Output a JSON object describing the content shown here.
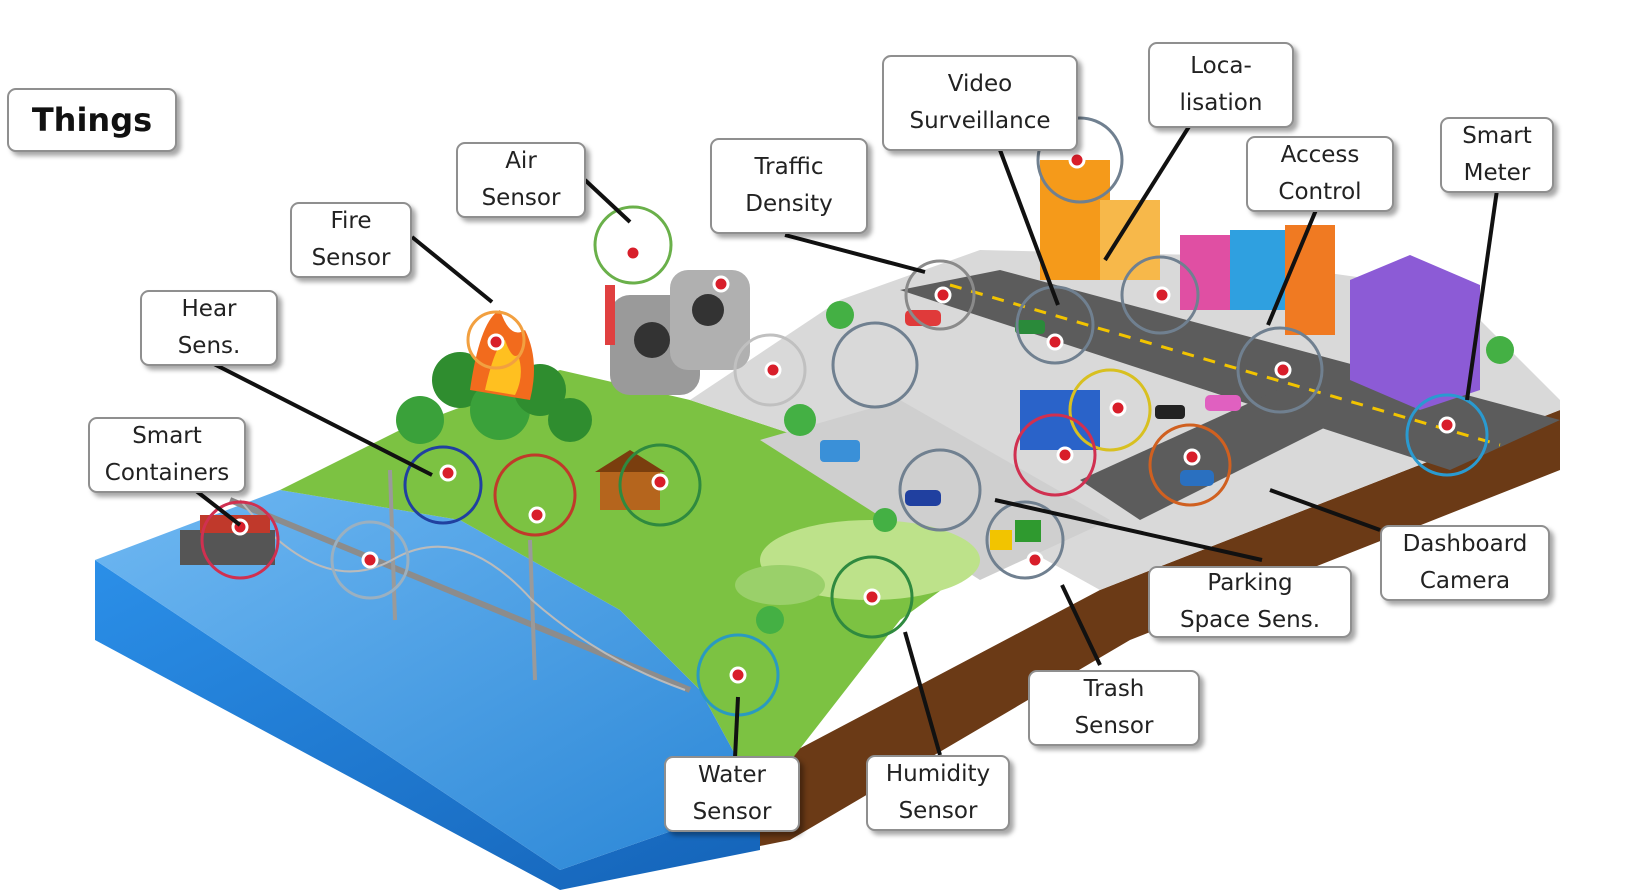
{
  "title": "Things",
  "labels": {
    "air_sensor": "Air\nSensor",
    "fire_sensor": "Fire\nSensor",
    "hear_sensor": "Hear\nSens.",
    "smart_containers": "Smart\nContainers",
    "traffic_density": "Traffic\nDensity",
    "video_surveillance": "Video\nSurveillance",
    "localisation": "Loca-\nlisation",
    "access_control": "Access\nControl",
    "smart_meter": "Smart\nMeter",
    "dashboard_camera": "Dashboard\nCamera",
    "parking_space_sensor": "Parking\nSpace Sens.",
    "trash_sensor": "Trash\nSensor",
    "humidity_sensor": "Humidity\nSensor",
    "water_sensor": "Water\nSensor"
  },
  "colors": {
    "water": "#1f7fd8",
    "grass": "#7cc242",
    "road": "#5c5c5c",
    "soil": "#6b3a16",
    "sensor_dot": "#d81e2a"
  }
}
